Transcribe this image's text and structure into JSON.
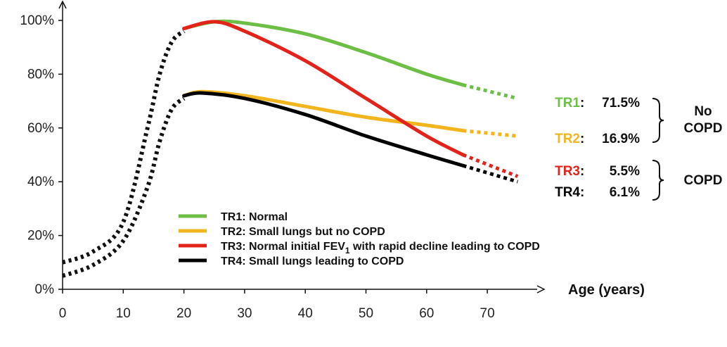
{
  "chart_data": {
    "type": "line",
    "xlabel": "Age (years)",
    "ylabel": "",
    "xlim": [
      0,
      77
    ],
    "ylim": [
      0,
      100
    ],
    "x_ticks": [
      0,
      10,
      20,
      30,
      40,
      50,
      60,
      70
    ],
    "y_ticks": [
      0,
      20,
      40,
      60,
      80,
      100
    ],
    "y_tick_labels": [
      "0%",
      "20%",
      "40%",
      "60%",
      "80%",
      "100%"
    ],
    "legend_position": "bottom-center",
    "shared_growth_dotted": [
      {
        "x": [
          0,
          5,
          10,
          14,
          16,
          18,
          20
        ],
        "values": [
          10,
          14,
          25,
          60,
          80,
          92,
          96
        ]
      },
      {
        "x": [
          0,
          5,
          10,
          14,
          16,
          18,
          20
        ],
        "values": [
          5,
          9,
          18,
          38,
          55,
          67,
          71
        ]
      }
    ],
    "series": [
      {
        "name": "TR1: Normal",
        "color": "#6cbe45",
        "x": [
          20,
          25,
          30,
          40,
          50,
          60,
          66
        ],
        "values": [
          97,
          99.5,
          99,
          95,
          88,
          80,
          76
        ],
        "ext_x": [
          66,
          75
        ],
        "ext_values": [
          76,
          71
        ]
      },
      {
        "name": "TR2: Small lungs but no COPD",
        "color": "#f2b51d",
        "x": [
          20,
          23,
          30,
          40,
          50,
          60,
          66
        ],
        "values": [
          72,
          73.5,
          72,
          68,
          64,
          61,
          59
        ],
        "ext_x": [
          66,
          75
        ],
        "ext_values": [
          59,
          57
        ]
      },
      {
        "name": "TR3: Normal initial FEV",
        "name_sub": "1",
        "name_rest": " with rapid decline leading to COPD",
        "color": "#e2231a",
        "x": [
          20,
          25,
          30,
          40,
          50,
          60,
          66
        ],
        "values": [
          97,
          99.5,
          96,
          85,
          71,
          57,
          50
        ],
        "ext_x": [
          66,
          75
        ],
        "ext_values": [
          50,
          42
        ]
      },
      {
        "name": "TR4: Small lungs leading to COPD",
        "color": "#000000",
        "x": [
          20,
          23,
          30,
          40,
          50,
          60,
          66
        ],
        "values": [
          72,
          73,
          71,
          65,
          57,
          50,
          46
        ],
        "ext_x": [
          66,
          75
        ],
        "ext_values": [
          46,
          40
        ]
      }
    ],
    "annotations": [
      {
        "label": "TR1",
        "value": "71.5%",
        "color": "#6cbe45"
      },
      {
        "label": "TR2",
        "value": "16.9%",
        "color": "#f2b51d"
      },
      {
        "label": "TR3",
        "value": "5.5%",
        "color": "#e2231a"
      },
      {
        "label": "TR4",
        "value": "6.1%",
        "color": "#000000"
      }
    ],
    "groups": [
      {
        "lines": [
          "No",
          "COPD"
        ]
      },
      {
        "lines": [
          "COPD"
        ]
      }
    ]
  }
}
